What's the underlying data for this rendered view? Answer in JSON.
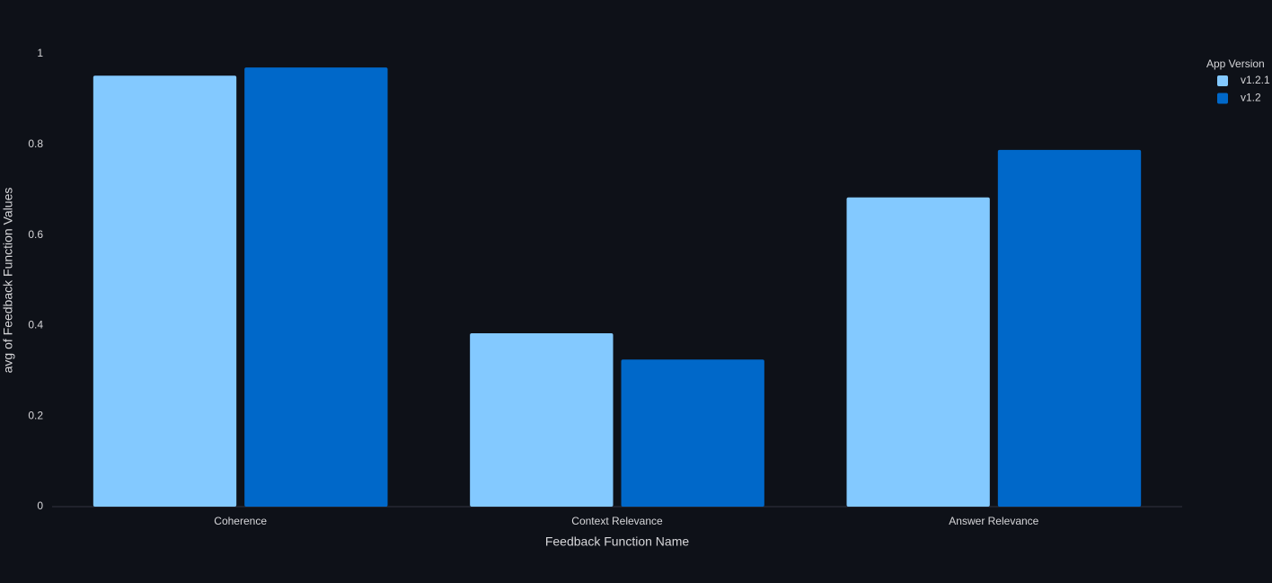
{
  "chart_data": {
    "type": "bar",
    "x_label": "Feedback Function Name",
    "y_label": "avg of Feedback Function Values",
    "legend_title": "App Version",
    "legend_position": "top-right",
    "categories": [
      "Coherence",
      "Context Relevance",
      "Answer Relevance"
    ],
    "series": [
      {
        "name": "v1.2.1",
        "color": "#83c9ff",
        "values": [
          0.952,
          0.383,
          0.683
        ]
      },
      {
        "name": "v1.2",
        "color": "#0068c9",
        "values": [
          0.97,
          0.325,
          0.788
        ]
      }
    ],
    "ylim": [
      0,
      1
    ],
    "yticks": [
      0,
      0.2,
      0.4,
      0.6,
      0.8,
      1
    ],
    "grid": false
  }
}
